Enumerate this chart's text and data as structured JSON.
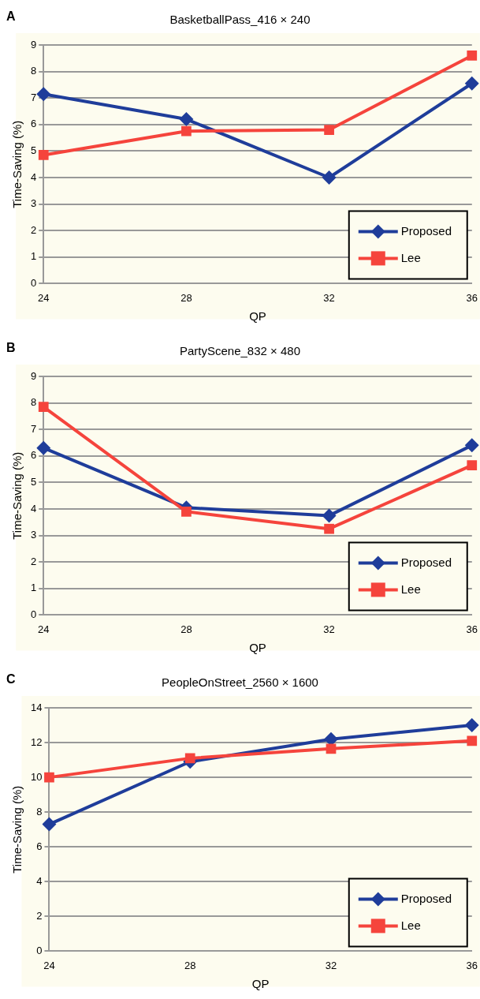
{
  "chart_data": [
    {
      "type": "line",
      "title": "BasketballPass_416 × 240",
      "xlabel": "QP",
      "ylabel": "Time-Saving (%)",
      "annotations": [
        "A"
      ],
      "categories": [
        "24",
        "28",
        "32",
        "36"
      ],
      "series": [
        {
          "name": "Proposed",
          "color": "#1f3d9a",
          "marker": "diamond",
          "values": [
            7.15,
            6.2,
            4.0,
            7.55
          ]
        },
        {
          "name": "Lee",
          "color": "#f5443c",
          "marker": "square",
          "values": [
            4.85,
            5.75,
            5.8,
            8.6
          ]
        }
      ],
      "ylim": [
        0,
        9
      ],
      "yticks": [
        0,
        1,
        2,
        3,
        4,
        5,
        6,
        7,
        8,
        9
      ],
      "grid": "y",
      "legend": "bottom right"
    },
    {
      "type": "line",
      "title": "PartyScene_832 × 480",
      "xlabel": "QP",
      "ylabel": "Time-Saving (%)",
      "annotations": [
        "B"
      ],
      "categories": [
        "24",
        "28",
        "32",
        "36"
      ],
      "series": [
        {
          "name": "Proposed",
          "color": "#1f3d9a",
          "marker": "diamond",
          "values": [
            6.3,
            4.05,
            3.75,
            6.4
          ]
        },
        {
          "name": "Lee",
          "color": "#f5443c",
          "marker": "square",
          "values": [
            7.85,
            3.9,
            3.25,
            5.65
          ]
        }
      ],
      "ylim": [
        0,
        9
      ],
      "yticks": [
        0,
        1,
        2,
        3,
        4,
        5,
        6,
        7,
        8,
        9
      ],
      "grid": "y",
      "legend": "bottom right"
    },
    {
      "type": "line",
      "title": "PeopleOnStreet_2560 × 1600",
      "xlabel": "QP",
      "ylabel": "Time-Saving (%)",
      "annotations": [
        "C"
      ],
      "categories": [
        "24",
        "28",
        "32",
        "36"
      ],
      "series": [
        {
          "name": "Proposed",
          "color": "#1f3d9a",
          "marker": "diamond",
          "values": [
            7.3,
            10.9,
            12.2,
            13.0
          ]
        },
        {
          "name": "Lee",
          "color": "#f5443c",
          "marker": "square",
          "values": [
            10.0,
            11.1,
            11.65,
            12.1
          ]
        }
      ],
      "ylim": [
        0,
        14
      ],
      "yticks": [
        0,
        2,
        4,
        6,
        8,
        10,
        12,
        14
      ],
      "grid": "y",
      "legend": "bottom right"
    }
  ]
}
